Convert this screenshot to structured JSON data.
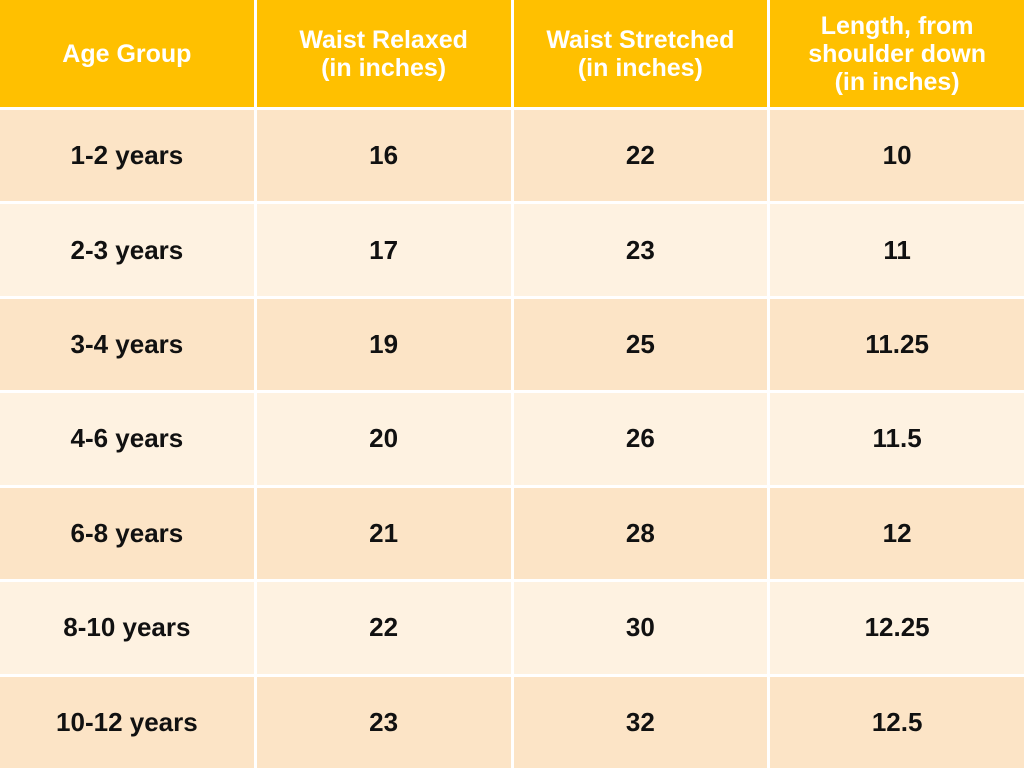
{
  "table": {
    "header": [
      [
        "Age Group"
      ],
      [
        "Waist Relaxed",
        "(in inches)"
      ],
      [
        "Waist Stretched",
        "(in inches)"
      ],
      [
        "Length, from",
        "shoulder down",
        "(in inches)"
      ]
    ],
    "rows": [
      [
        "1-2 years",
        16,
        22,
        10
      ],
      [
        "2-3 years",
        17,
        23,
        11
      ],
      [
        "3-4 years",
        19,
        25,
        11.25
      ],
      [
        "4-6 years",
        20,
        26,
        11.5
      ],
      [
        "6-8 years",
        21,
        28,
        12
      ],
      [
        "8-10 years",
        22,
        30,
        12.25
      ],
      [
        "10-12 years",
        23,
        32,
        12.5
      ]
    ]
  }
}
